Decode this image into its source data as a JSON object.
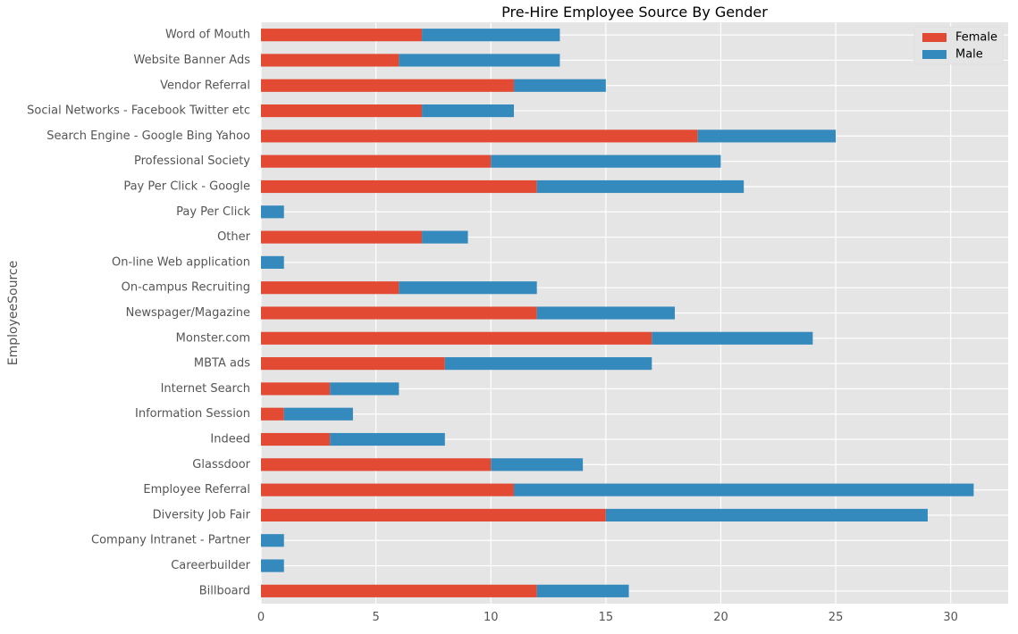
{
  "chart_data": {
    "type": "bar",
    "orientation": "horizontal",
    "stacked": true,
    "title": "Pre-Hire Employee Source By Gender",
    "xlabel": "",
    "ylabel": "EmployeeSource",
    "xlim": [
      0,
      32.5
    ],
    "xticks": [
      0,
      5,
      10,
      15,
      20,
      25,
      30
    ],
    "grid": true,
    "legend_position": "top-right",
    "categories": [
      "Billboard",
      "Careerbuilder",
      "Company Intranet - Partner",
      "Diversity Job Fair",
      "Employee Referral",
      "Glassdoor",
      "Indeed",
      "Information Session",
      "Internet Search",
      "MBTA ads",
      "Monster.com",
      "Newspager/Magazine",
      "On-campus Recruiting",
      "On-line Web application",
      "Other",
      "Pay Per Click",
      "Pay Per Click - Google",
      "Professional Society",
      "Search Engine - Google Bing Yahoo",
      "Social Networks - Facebook Twitter etc",
      "Vendor Referral",
      "Website Banner Ads",
      "Word of Mouth"
    ],
    "series": [
      {
        "name": "Female",
        "color": "#E24A33",
        "values": [
          12,
          0,
          0,
          15,
          11,
          10,
          3,
          1,
          3,
          8,
          17,
          12,
          6,
          0,
          7,
          0,
          12,
          10,
          19,
          7,
          11,
          6,
          7
        ]
      },
      {
        "name": "Male",
        "color": "#348ABD",
        "values": [
          4,
          1,
          1,
          14,
          20,
          4,
          5,
          3,
          3,
          9,
          7,
          6,
          6,
          1,
          2,
          1,
          9,
          10,
          6,
          4,
          4,
          7,
          6
        ]
      }
    ]
  }
}
